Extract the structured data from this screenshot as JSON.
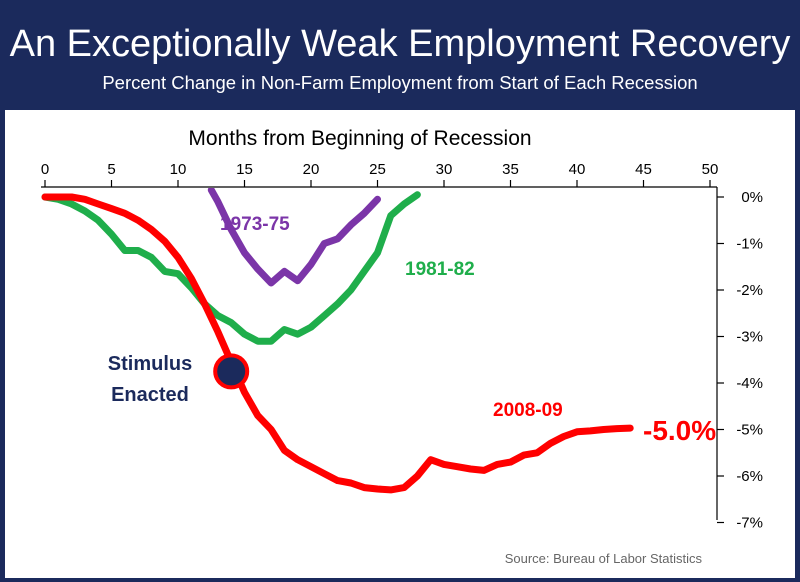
{
  "header": {
    "title": "An Exceptionally Weak Employment Recovery",
    "subtitle": "Percent Change in Non-Farm Employment from Start of Each Recession"
  },
  "source": "Source:  Bureau of Labor Statistics",
  "colors": {
    "header_bg": "#1b2a5c",
    "series_2008": "#ff0000",
    "series_1981": "#1fae4b",
    "series_1973": "#7b35a8",
    "stimulus_marker": "#1b2a5c"
  },
  "chart_data": {
    "type": "line",
    "title": "An Exceptionally Weak Employment Recovery",
    "subtitle": "Percent Change in Non-Farm Employment from Start of Each Recession",
    "xlabel": "Months from Beginning of Recession",
    "ylabel": "",
    "x_ticks": [
      "0",
      "5",
      "10",
      "15",
      "20",
      "25",
      "30",
      "35",
      "40",
      "45",
      "50"
    ],
    "y_ticks": [
      "0%",
      "-1%",
      "-2%",
      "-3%",
      "-4%",
      "-5%",
      "-6%",
      "-7%"
    ],
    "xlim": [
      0,
      50
    ],
    "ylim": [
      -7,
      0
    ],
    "x_axis_position": "top",
    "y_axis_position": "right",
    "grid": false,
    "series": [
      {
        "name": "2008-09",
        "x": [
          0,
          1,
          2,
          3,
          4,
          5,
          6,
          7,
          8,
          9,
          10,
          11,
          12,
          13,
          14,
          15,
          16,
          17,
          18,
          19,
          20,
          21,
          22,
          23,
          24,
          25,
          26,
          27,
          28,
          29,
          30,
          31,
          32,
          33,
          34,
          35,
          36,
          37,
          38,
          39,
          40,
          41,
          42,
          43,
          44
        ],
        "values": [
          0,
          0,
          0,
          -0.05,
          -0.15,
          -0.25,
          -0.35,
          -0.5,
          -0.7,
          -0.95,
          -1.3,
          -1.75,
          -2.3,
          -2.9,
          -3.55,
          -4.2,
          -4.7,
          -5.0,
          -5.45,
          -5.65,
          -5.8,
          -5.95,
          -6.1,
          -6.15,
          -6.25,
          -6.28,
          -6.3,
          -6.25,
          -6.0,
          -5.65,
          -5.75,
          -5.8,
          -5.85,
          -5.88,
          -5.75,
          -5.7,
          -5.55,
          -5.5,
          -5.3,
          -5.15,
          -5.05,
          -5.03,
          -5.0,
          -4.98,
          -4.97
        ]
      },
      {
        "name": "1981-82",
        "x": [
          0,
          1,
          2,
          3,
          4,
          5,
          6,
          7,
          8,
          9,
          10,
          11,
          12,
          13,
          14,
          15,
          16,
          17,
          18,
          19,
          20,
          21,
          22,
          23,
          24,
          25,
          26,
          27,
          28
        ],
        "values": [
          0,
          -0.05,
          -0.15,
          -0.3,
          -0.5,
          -0.8,
          -1.15,
          -1.15,
          -1.3,
          -1.6,
          -1.65,
          -1.95,
          -2.3,
          -2.55,
          -2.7,
          -2.95,
          -3.1,
          -3.1,
          -2.85,
          -2.95,
          -2.8,
          -2.55,
          -2.3,
          -2.0,
          -1.6,
          -1.2,
          -0.4,
          -0.15,
          0.05
        ]
      },
      {
        "name": "1973-75",
        "x": [
          12.5,
          13,
          14,
          15,
          16,
          17,
          18,
          19,
          20,
          21,
          22,
          23,
          24,
          25
        ],
        "values": [
          0.15,
          -0.1,
          -0.7,
          -1.2,
          -1.55,
          -1.85,
          -1.6,
          -1.8,
          -1.45,
          -1.0,
          -0.9,
          -0.6,
          -0.35,
          -0.05
        ]
      }
    ],
    "annotations": [
      {
        "text": "Stimulus",
        "x": 14,
        "y": -3.75
      },
      {
        "text": "Enacted",
        "x": 14,
        "y": -3.75
      },
      {
        "text": "-5.0%",
        "series": "2008-09",
        "x": 44,
        "y": -4.97
      }
    ]
  }
}
